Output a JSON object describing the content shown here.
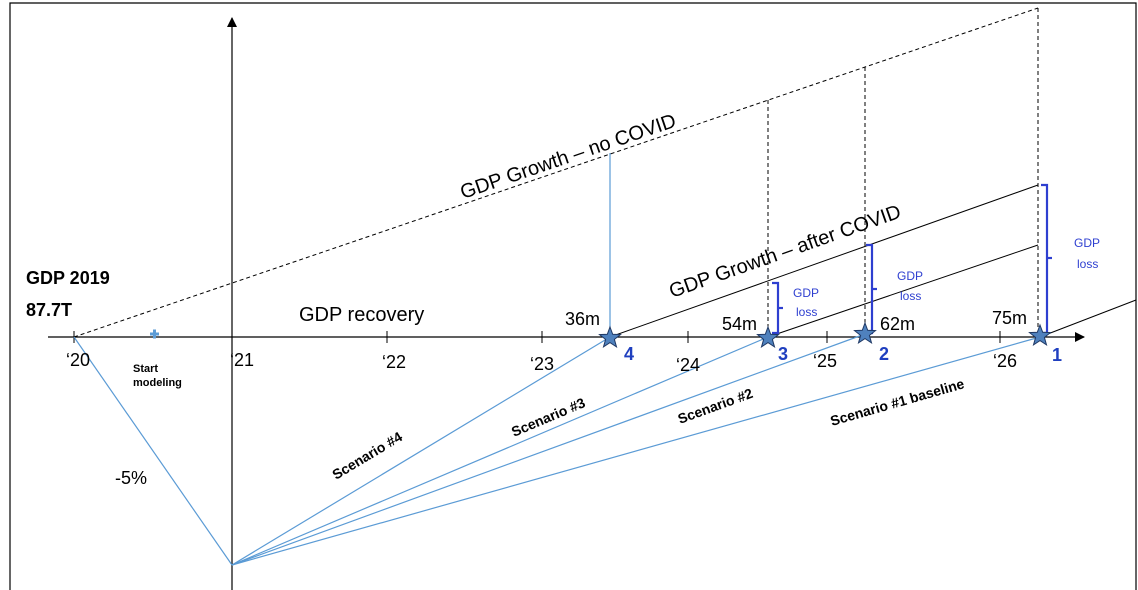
{
  "gdp_base": {
    "line1": "GDP 2019",
    "line2": "87.7T"
  },
  "years": [
    "‘20",
    "‘21",
    "‘22",
    "‘23",
    "‘24",
    "‘25",
    "‘26"
  ],
  "start_modeling": {
    "line1": "Start",
    "line2": "modeling"
  },
  "dip_label": "-5%",
  "recovery_label": "GDP recovery",
  "growth_no_covid": "GDP Growth – no COVID",
  "growth_after_covid": "GDP Growth – after COVID",
  "scenarios": [
    {
      "label": "Scenario #4",
      "number": "4",
      "months": "36m"
    },
    {
      "label": "Scenario #3",
      "number": "3",
      "months": "54m"
    },
    {
      "label": "Scenario #2",
      "number": "2",
      "months": "62m"
    },
    {
      "label": "Scenario #1 baseline",
      "number": "1",
      "months": "75m"
    }
  ],
  "gdp_loss": {
    "line1": "GDP",
    "line2": "loss"
  },
  "colors": {
    "axis": "#000000",
    "scenario_line": "#5b9bd5",
    "star_fill": "#4f81bd",
    "star_stroke": "#1f3864",
    "loss_bracket": "#2e3fd0",
    "number": "#1f3fbf",
    "start_marker": "#5b9bd5"
  },
  "icons": {
    "marker": "star-icon",
    "start": "plus-marker-icon"
  }
}
